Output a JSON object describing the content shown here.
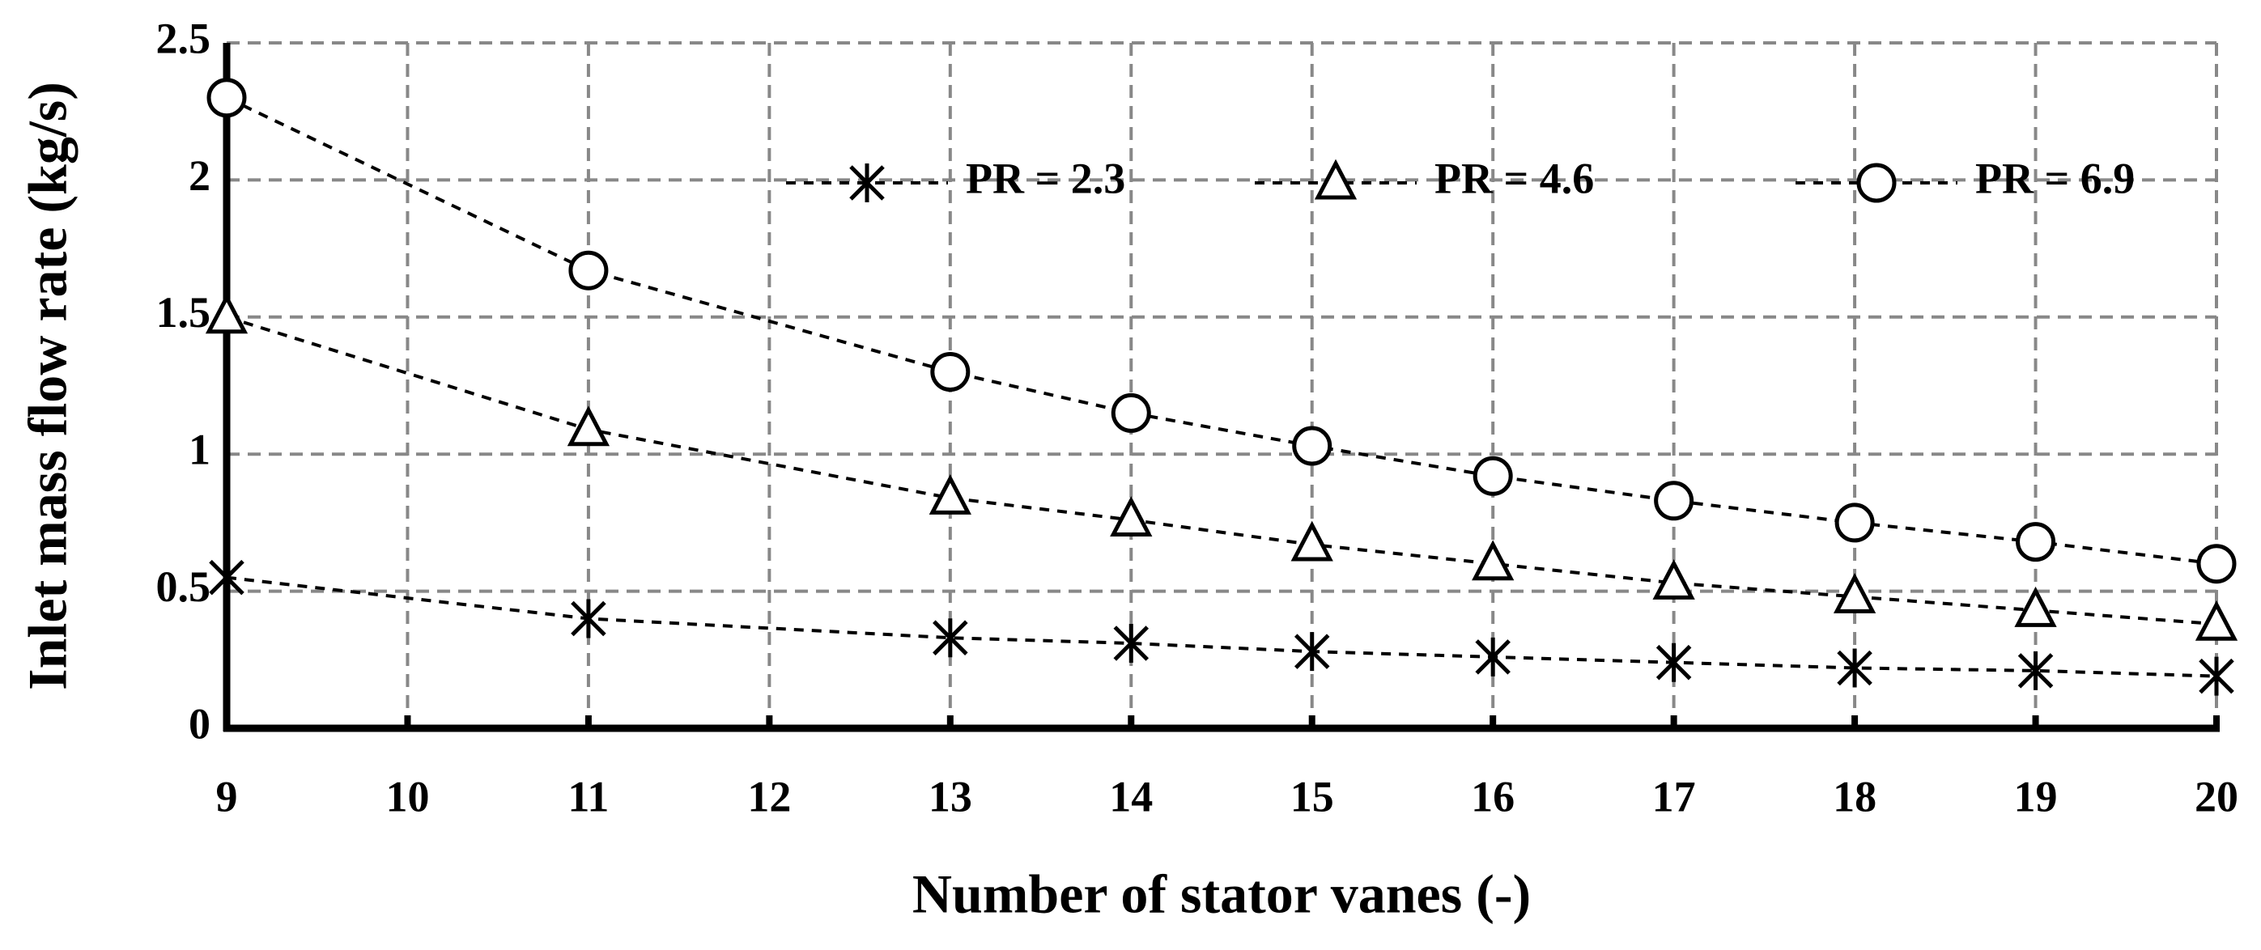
{
  "chart_data": {
    "type": "line",
    "x_label": "Number of stator vanes (-)",
    "y_label": "Inlet mass flow rate (kg/s)",
    "x": [
      9,
      11,
      13,
      14,
      15,
      16,
      17,
      18,
      19,
      20
    ],
    "series": [
      {
        "name": "PR = 2.3",
        "color": "#000000",
        "marker": "asterisk",
        "values": [
          0.55,
          0.4,
          0.33,
          0.31,
          0.28,
          0.26,
          0.24,
          0.22,
          0.21,
          0.19
        ]
      },
      {
        "name": "PR = 4.6",
        "color": "#000000",
        "marker": "triangle",
        "values": [
          1.5,
          1.09,
          0.84,
          0.76,
          0.67,
          0.6,
          0.53,
          0.48,
          0.43,
          0.38
        ]
      },
      {
        "name": "PR = 6.9",
        "color": "#000000",
        "marker": "circle",
        "values": [
          2.3,
          1.67,
          1.3,
          1.15,
          1.03,
          0.92,
          0.83,
          0.75,
          0.68,
          0.6
        ]
      }
    ],
    "xlim": [
      9,
      20
    ],
    "xticks": [
      9,
      10,
      11,
      12,
      13,
      14,
      15,
      16,
      17,
      18,
      19,
      20
    ],
    "ylim": [
      0,
      2.5
    ],
    "yticks": [
      0,
      0.5,
      1,
      1.5,
      2,
      2.5
    ],
    "grid": true,
    "legend": "top-right"
  }
}
